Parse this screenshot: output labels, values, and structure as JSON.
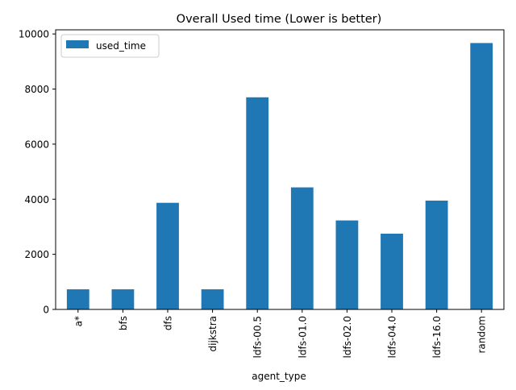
{
  "chart_data": {
    "type": "bar",
    "title": "Overall Used time (Lower is better)",
    "xlabel": "agent_type",
    "ylabel": "",
    "categories": [
      "a*",
      "bfs",
      "dfs",
      "dijkstra",
      "ldfs-00.5",
      "ldfs-01.0",
      "ldfs-02.0",
      "ldfs-04.0",
      "ldfs-16.0",
      "random"
    ],
    "series": [
      {
        "name": "used_time",
        "values": [
          730,
          730,
          3870,
          730,
          7700,
          4430,
          3230,
          2750,
          3950,
          9670
        ],
        "color": "#1f77b4"
      }
    ],
    "ylim": [
      0,
      10150
    ],
    "yticks": [
      0,
      2000,
      4000,
      6000,
      8000,
      10000
    ],
    "grid": false,
    "legend": "top-left"
  }
}
